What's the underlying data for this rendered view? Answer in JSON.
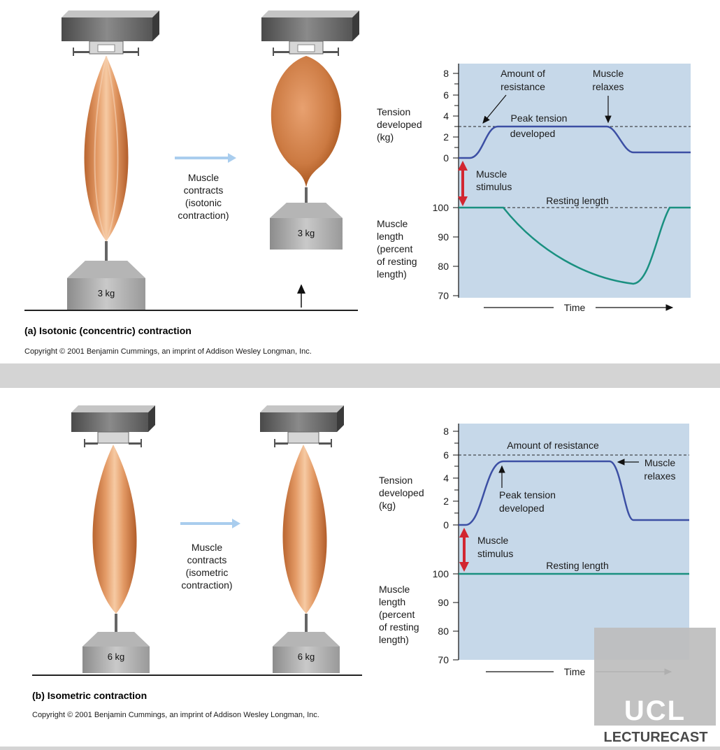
{
  "panel_a": {
    "caption": "(a) Isotonic (concentric) contraction",
    "copyright": "Copyright © 2001 Benjamin Cummings, an imprint of Addison Wesley Longman, Inc.",
    "weight_left": "3 kg",
    "weight_right": "3 kg",
    "middle_label": [
      "Muscle",
      "contracts",
      "(isotonic",
      "contraction)"
    ],
    "tension_axis_label": [
      "Tension",
      "developed",
      "(kg)"
    ],
    "tension_ticks": [
      "8",
      "6",
      "4",
      "2",
      "0"
    ],
    "length_axis_label": [
      "Muscle",
      "length",
      "(percent",
      "of resting",
      "length)"
    ],
    "length_ticks": [
      "100",
      "90",
      "80",
      "70"
    ],
    "annot_resistance": [
      "Amount of",
      "resistance"
    ],
    "annot_relaxes": [
      "Muscle",
      "relaxes"
    ],
    "annot_peak": [
      "Peak tension",
      "developed"
    ],
    "annot_stimulus": [
      "Muscle",
      "stimulus"
    ],
    "annot_resting": "Resting length",
    "time_label": "Time"
  },
  "panel_b": {
    "caption": "(b) Isometric contraction",
    "copyright": "Copyright © 2001 Benjamin Cummings, an imprint of Addison Wesley Longman, Inc.",
    "weight_left": "6 kg",
    "weight_right": "6 kg",
    "middle_label": [
      "Muscle",
      "contracts",
      "(isometric",
      "contraction)"
    ],
    "tension_axis_label": [
      "Tension",
      "developed",
      "(kg)"
    ],
    "tension_ticks": [
      "8",
      "6",
      "4",
      "2",
      "0"
    ],
    "length_axis_label": [
      "Muscle",
      "length",
      "(percent",
      "of resting",
      "length)"
    ],
    "length_ticks": [
      "100",
      "90",
      "80",
      "70"
    ],
    "annot_resistance": "Amount of resistance",
    "annot_relaxes": [
      "Muscle",
      "relaxes"
    ],
    "annot_peak": [
      "Peak tension",
      "developed"
    ],
    "annot_stimulus": [
      "Muscle",
      "stimulus"
    ],
    "annot_resting": "Resting length",
    "time_label": "Time"
  },
  "logo": {
    "line1": "UCL",
    "line2": "LECTURECAST"
  },
  "colors": {
    "panel_bg": "#ffffff",
    "outer_bg": "#d4d4d4",
    "graph_bg": "#c6d8e9",
    "tension_curve": "#3c4fa4",
    "length_curve": "#1a9080",
    "stimulus_arrow": "#d22630",
    "flow_arrow": "#a9cdee",
    "muscle": "#d98a55"
  }
}
